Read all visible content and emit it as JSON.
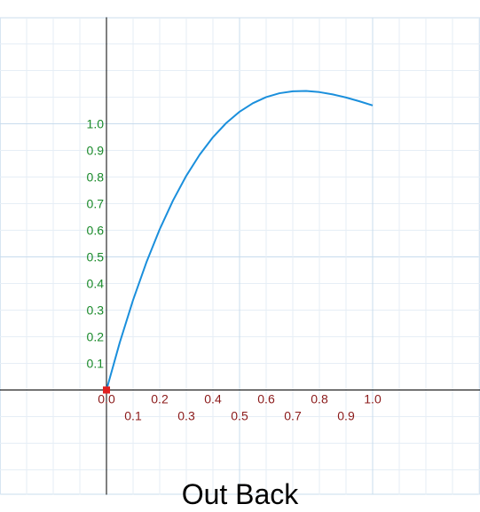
{
  "chart_data": {
    "type": "line",
    "title": "Out Back",
    "xlabel": "",
    "ylabel": "",
    "xlim": [
      -0.4,
      1.4
    ],
    "ylim": [
      -0.4,
      1.4
    ],
    "grid": true,
    "x_tick_labels": [
      "0.0",
      "0.1",
      "0.2",
      "0.3",
      "0.4",
      "0.5",
      "0.6",
      "0.7",
      "0.8",
      "0.9",
      "1.0"
    ],
    "y_tick_labels": [
      "0.1",
      "0.2",
      "0.3",
      "0.4",
      "0.5",
      "0.6",
      "0.7",
      "0.8",
      "0.9",
      "1.0"
    ],
    "series": [
      {
        "easing": "out-back",
        "color": "#1a8fdc",
        "x": [
          0.0,
          0.05,
          0.1,
          0.15,
          0.2,
          0.25,
          0.3,
          0.35,
          0.4,
          0.45,
          0.5,
          0.55,
          0.6,
          0.65,
          0.7,
          0.75,
          0.8,
          0.85,
          0.9,
          0.95,
          1.0
        ],
        "y": [
          0.0,
          0.1785,
          0.338,
          0.4794,
          0.6037,
          0.7119,
          0.8049,
          0.8838,
          0.9495,
          1.003,
          1.0453,
          1.0774,
          1.1002,
          1.1148,
          1.1221,
          1.1232,
          1.119,
          1.1105,
          1.0987,
          1.0846,
          1.0691
        ]
      }
    ],
    "start_marker": {
      "x": 0.0,
      "y": 0.0,
      "color": "#e02020"
    }
  },
  "colors": {
    "axis": "#000000",
    "grid": "#e6eef6",
    "grid_major": "#c8dcee",
    "x_tick_color": "#8b1a1a",
    "y_tick_color": "#1a8a2a"
  }
}
